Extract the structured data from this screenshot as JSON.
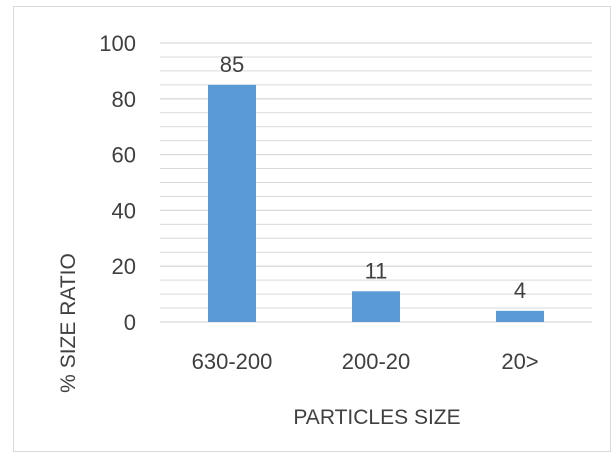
{
  "chart_data": {
    "type": "bar",
    "categories": [
      "630-200",
      "200-20",
      "20>"
    ],
    "values": [
      85,
      11,
      4
    ],
    "data_labels": [
      "85",
      "11",
      "4"
    ],
    "xlabel": "PARTICLES SIZE",
    "ylabel": "% SIZE RATIO",
    "ylim": [
      0,
      100
    ],
    "yticks": [
      0,
      20,
      40,
      60,
      80,
      100
    ],
    "grid": true,
    "minor_grid": true,
    "legend": "none",
    "bar_color": "#5b9bd5",
    "grid_color": "#d9d9d9",
    "text_color": "#404040"
  }
}
